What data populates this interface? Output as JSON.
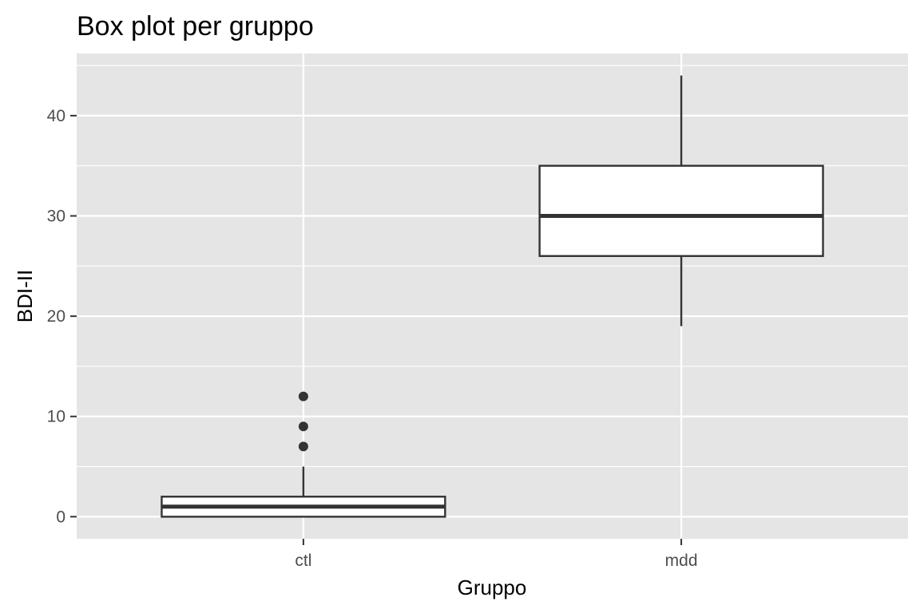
{
  "chart_data": {
    "type": "box",
    "title": "Box plot per gruppo",
    "xlabel": "Gruppo",
    "ylabel": "BDI-II",
    "ylim": [
      -2.2,
      46.2
    ],
    "y_ticks": [
      0,
      10,
      20,
      30,
      40
    ],
    "y_tick_labels": [
      "0",
      "10",
      "20",
      "30",
      "40"
    ],
    "categories": [
      "ctl",
      "mdd"
    ],
    "boxes": [
      {
        "category": "ctl",
        "whisker_low": 0,
        "q1": 0,
        "median": 1,
        "q3": 2,
        "whisker_high": 5,
        "outliers": [
          7,
          9,
          12
        ]
      },
      {
        "category": "mdd",
        "whisker_low": 19,
        "q1": 26,
        "median": 30,
        "q3": 35,
        "whisker_high": 44,
        "outliers": []
      }
    ],
    "grid": true,
    "panel_background": "#e5e5e5",
    "grid_color": "#ffffff",
    "box_fill": "#ffffff",
    "line_color": "#333333",
    "outlier_color": "#333333"
  }
}
